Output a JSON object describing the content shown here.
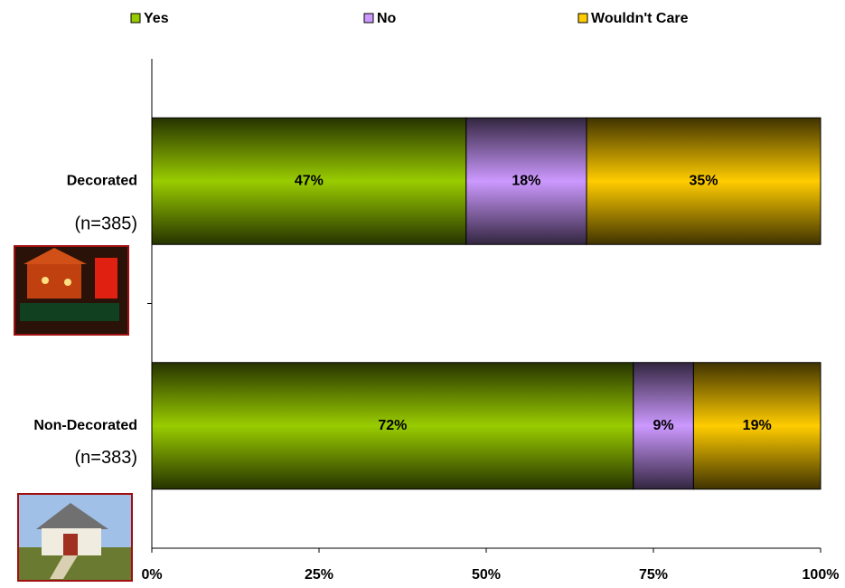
{
  "chart_data": {
    "type": "stacked-bar-horizontal",
    "categories": [
      "Decorated",
      "Non-Decorated"
    ],
    "category_subtitles": [
      "(n=385)",
      "(n=383)"
    ],
    "series": [
      {
        "name": "Yes",
        "color": "#99cc00",
        "values": [
          47,
          72
        ],
        "value_labels": [
          "47%",
          "72%"
        ]
      },
      {
        "name": "No",
        "color": "#cc99ff",
        "values": [
          18,
          9
        ],
        "value_labels": [
          "18%",
          "9%"
        ]
      },
      {
        "name": "Wouldn't Care",
        "color": "#ffcc00",
        "values": [
          35,
          19
        ],
        "value_labels": [
          "35%",
          "19%"
        ]
      }
    ],
    "xlim": [
      0,
      100
    ],
    "xticks": [
      {
        "value": 0,
        "label": "0%"
      },
      {
        "value": 25,
        "label": "25%"
      },
      {
        "value": 50,
        "label": "50%"
      },
      {
        "value": 75,
        "label": "75%"
      },
      {
        "value": 100,
        "label": "100%"
      }
    ],
    "legend": "top"
  }
}
